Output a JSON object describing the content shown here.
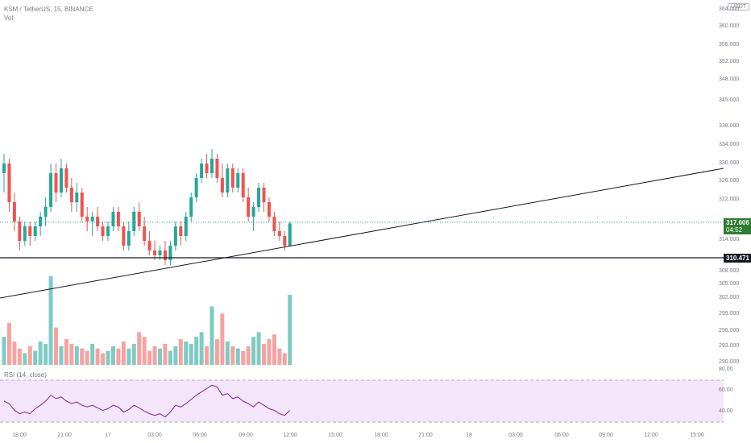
{
  "header": {
    "symbol_line": "KSM / TetherUS, 15, BINANCE",
    "vol_label": "Vol",
    "rsi_label": "RSI (14, close)"
  },
  "currency_badge": "USDT",
  "price_axis": {
    "ticks": [
      "364.000",
      "360.000",
      "356.000",
      "352.000",
      "348.000",
      "345.000",
      "338.000",
      "334.000",
      "330.000",
      "326.000",
      "322.000",
      "314.000",
      "308.000",
      "305.000",
      "302.000",
      "299.000",
      "296.000",
      "293.000",
      "290.000"
    ]
  },
  "rsi_axis": {
    "ticks": [
      "80.00",
      "60.00",
      "40.00"
    ]
  },
  "time_axis": {
    "ticks": [
      "18:00",
      "21:00",
      "17",
      "03:00",
      "06:00",
      "09:00",
      "12:00",
      "15:00",
      "18:00",
      "21:00",
      "18",
      "03:00",
      "06:00",
      "09:00",
      "12:00",
      "15:00"
    ]
  },
  "last_price": {
    "price": "317.606",
    "countdown": "04:52"
  },
  "horizontal_line_price": "310.471",
  "colors": {
    "up": "#26a69a",
    "down": "#ef5350",
    "up_vol": "#7fcbc4",
    "down_vol": "#f5a3a1",
    "rsi_band": "#f3e6fb",
    "rsi_line": "#7b1fa2",
    "last_price_tag": "#2e7d32",
    "line_tag": "#131722"
  },
  "chart_data": [
    {
      "type": "candlestick",
      "series": [
        {
          "name": "KSM / TetherUS",
          "ohlc": [
            [
              328,
              332,
              324,
              330
            ],
            [
              330,
              331,
              320,
              322
            ],
            [
              322,
              324,
              316,
              318
            ],
            [
              318,
              319,
              312,
              314
            ],
            [
              314,
              318,
              313,
              317
            ],
            [
              317,
              318,
              313,
              315
            ],
            [
              315,
              318,
              314,
              317
            ],
            [
              317,
              320,
              315,
              319
            ],
            [
              319,
              323,
              317,
              321
            ],
            [
              321,
              330,
              320,
              328
            ],
            [
              328,
              330,
              322,
              324
            ],
            [
              324,
              331,
              323,
              329
            ],
            [
              329,
              330,
              324,
              325
            ],
            [
              325,
              327,
              320,
              322
            ],
            [
              322,
              326,
              320,
              324
            ],
            [
              324,
              325,
              318,
              319
            ],
            [
              319,
              321,
              316,
              318
            ],
            [
              318,
              320,
              315,
              319
            ],
            [
              319,
              321,
              316,
              317
            ],
            [
              317,
              318,
              314,
              315
            ],
            [
              315,
              318,
              314,
              317
            ],
            [
              317,
              321,
              316,
              320
            ],
            [
              320,
              321,
              316,
              317
            ],
            [
              317,
              318,
              312,
              313
            ],
            [
              313,
              318,
              312,
              316
            ],
            [
              316,
              321,
              315,
              320
            ],
            [
              320,
              322,
              316,
              317
            ],
            [
              317,
              319,
              313,
              314
            ],
            [
              314,
              316,
              311,
              312
            ],
            [
              312,
              314,
              310,
              311
            ],
            [
              311,
              313,
              310,
              312
            ],
            [
              312,
              314,
              309,
              310
            ],
            [
              310,
              314,
              309,
              313
            ],
            [
              313,
              318,
              312,
              317
            ],
            [
              317,
              318,
              313,
              315
            ],
            [
              315,
              320,
              314,
              319
            ],
            [
              319,
              324,
              318,
              323
            ],
            [
              323,
              328,
              322,
              327
            ],
            [
              327,
              331,
              326,
              330
            ],
            [
              330,
              332,
              327,
              328
            ],
            [
              328,
              333,
              327,
              331
            ],
            [
              331,
              332,
              326,
              327
            ],
            [
              327,
              330,
              323,
              324
            ],
            [
              324,
              330,
              323,
              329
            ],
            [
              329,
              330,
              324,
              325
            ],
            [
              325,
              329,
              324,
              328
            ],
            [
              328,
              329,
              322,
              323
            ],
            [
              323,
              325,
              318,
              319
            ],
            [
              319,
              322,
              316,
              321
            ],
            [
              321,
              326,
              320,
              325
            ],
            [
              325,
              326,
              320,
              322
            ],
            [
              322,
              323,
              318,
              319
            ],
            [
              319,
              320,
              315,
              316
            ],
            [
              316,
              318,
              314,
              315
            ],
            [
              315,
              316,
              312,
              313
            ],
            [
              313,
              318,
              313,
              317.606
            ]
          ]
        }
      ],
      "ylim": [
        290,
        364
      ]
    },
    {
      "type": "bar",
      "series": [
        {
          "name": "Vol",
          "values": [
            12,
            18,
            10,
            7,
            5,
            8,
            6,
            10,
            9,
            38,
            16,
            8,
            11,
            9,
            8,
            7,
            6,
            9,
            7,
            5,
            6,
            8,
            7,
            10,
            7,
            9,
            14,
            12,
            6,
            8,
            7,
            9,
            6,
            8,
            11,
            10,
            9,
            12,
            14,
            8,
            25,
            11,
            22,
            10,
            8,
            7,
            6,
            8,
            12,
            14,
            9,
            11,
            13,
            7,
            5,
            30
          ],
          "up": [
            1,
            0,
            0,
            0,
            1,
            0,
            1,
            1,
            1,
            1,
            0,
            1,
            0,
            0,
            1,
            0,
            0,
            1,
            0,
            0,
            1,
            1,
            0,
            0,
            1,
            1,
            0,
            0,
            0,
            0,
            1,
            0,
            1,
            1,
            0,
            1,
            1,
            1,
            1,
            0,
            1,
            0,
            0,
            1,
            0,
            1,
            0,
            0,
            1,
            1,
            0,
            0,
            0,
            0,
            0,
            1
          ]
        }
      ]
    },
    {
      "type": "line",
      "series": [
        {
          "name": "RSI",
          "values": [
            55,
            52,
            44,
            40,
            42,
            40,
            46,
            50,
            55,
            62,
            58,
            60,
            55,
            52,
            54,
            50,
            48,
            50,
            47,
            44,
            46,
            50,
            48,
            42,
            45,
            50,
            47,
            43,
            40,
            38,
            40,
            36,
            42,
            50,
            48,
            52,
            57,
            62,
            66,
            70,
            74,
            72,
            62,
            64,
            58,
            60,
            55,
            52,
            48,
            54,
            50,
            46,
            44,
            40,
            38,
            44
          ]
        }
      ],
      "ylim": [
        30,
        80
      ]
    }
  ]
}
